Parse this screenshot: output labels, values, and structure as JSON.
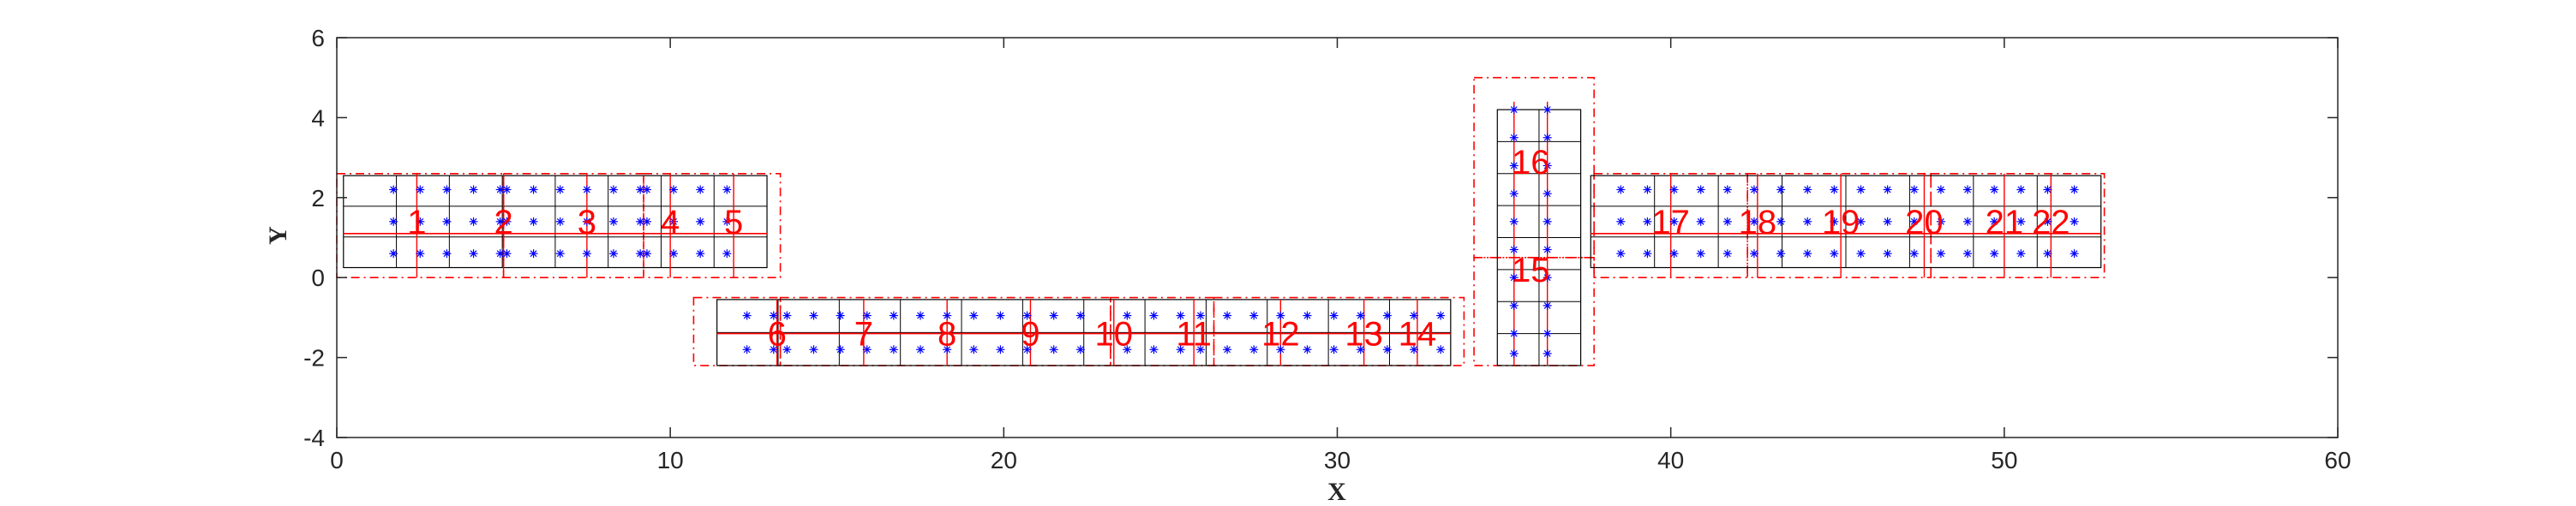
{
  "chart_data": {
    "type": "scatter",
    "title": "",
    "xlabel": "X",
    "ylabel": "Y",
    "xlim": [
      0,
      60
    ],
    "ylim": [
      -4,
      6
    ],
    "xticks": [
      0,
      10,
      20,
      30,
      40,
      50,
      60
    ],
    "yticks": [
      -4,
      -2,
      0,
      2,
      4,
      6
    ],
    "grid": false,
    "colors": {
      "grid_lines": "#000000",
      "dashed_boxes": "#ff0000",
      "points": "#0000ff",
      "labels": "#ff0000",
      "axes": "#262626"
    },
    "regions": [
      {
        "label": "1",
        "x": 2.4,
        "y": 1.4
      },
      {
        "label": "2",
        "x": 5.0,
        "y": 1.4
      },
      {
        "label": "3",
        "x": 7.5,
        "y": 1.4
      },
      {
        "label": "4",
        "x": 10.0,
        "y": 1.4
      },
      {
        "label": "5",
        "x": 11.9,
        "y": 1.4
      },
      {
        "label": "6",
        "x": 13.2,
        "y": -1.4
      },
      {
        "label": "7",
        "x": 15.8,
        "y": -1.4
      },
      {
        "label": "8",
        "x": 18.3,
        "y": -1.4
      },
      {
        "label": "9",
        "x": 20.8,
        "y": -1.4
      },
      {
        "label": "10",
        "x": 23.3,
        "y": -1.4
      },
      {
        "label": "11",
        "x": 25.7,
        "y": -1.4
      },
      {
        "label": "12",
        "x": 28.3,
        "y": -1.4
      },
      {
        "label": "13",
        "x": 30.8,
        "y": -1.4
      },
      {
        "label": "14",
        "x": 32.4,
        "y": -1.4
      },
      {
        "label": "15",
        "x": 35.8,
        "y": 0.2
      },
      {
        "label": "16",
        "x": 35.8,
        "y": 2.9
      },
      {
        "label": "17",
        "x": 40.0,
        "y": 1.4
      },
      {
        "label": "18",
        "x": 42.6,
        "y": 1.4
      },
      {
        "label": "19",
        "x": 45.1,
        "y": 1.4
      },
      {
        "label": "20",
        "x": 47.6,
        "y": 1.4
      },
      {
        "label": "21",
        "x": 50.0,
        "y": 1.4
      },
      {
        "label": "22",
        "x": 51.4,
        "y": 1.4
      }
    ],
    "grid_cells": [
      {
        "x0": 0.2,
        "x1": 12.9,
        "y0": 0.25,
        "y1": 2.55,
        "cols": 8,
        "rows": 3
      },
      {
        "x0": 11.4,
        "x1": 33.4,
        "y0": -2.2,
        "y1": -0.55,
        "cols": 12,
        "rows": 2
      },
      {
        "x0": 34.8,
        "x1": 37.3,
        "y0": -2.2,
        "y1": 4.2,
        "cols": 2,
        "rows": 8
      },
      {
        "x0": 37.6,
        "x1": 52.9,
        "y0": 0.25,
        "y1": 2.55,
        "cols": 8,
        "rows": 3
      }
    ],
    "dashed_boxes": [
      {
        "x0": 0.0,
        "x1": 5.0,
        "y0": 0.0,
        "y1": 2.6
      },
      {
        "x0": 5.0,
        "x1": 9.2,
        "y0": 0.0,
        "y1": 2.6
      },
      {
        "x0": 9.2,
        "x1": 13.3,
        "y0": 0.0,
        "y1": 2.6
      },
      {
        "x0": 10.7,
        "x1": 13.3,
        "y0": -2.2,
        "y1": -0.5
      },
      {
        "x0": 13.3,
        "x1": 23.2,
        "y0": -2.2,
        "y1": -0.5
      },
      {
        "x0": 23.2,
        "x1": 26.3,
        "y0": -2.2,
        "y1": -0.5
      },
      {
        "x0": 26.3,
        "x1": 33.8,
        "y0": -2.2,
        "y1": -0.5
      },
      {
        "x0": 34.1,
        "x1": 37.7,
        "y0": -2.2,
        "y1": 0.5
      },
      {
        "x0": 34.1,
        "x1": 37.7,
        "y0": 0.5,
        "y1": 5.0
      },
      {
        "x0": 37.7,
        "x1": 42.3,
        "y0": 0.0,
        "y1": 2.6
      },
      {
        "x0": 42.3,
        "x1": 47.8,
        "y0": 0.0,
        "y1": 2.6
      },
      {
        "x0": 47.8,
        "x1": 53.0,
        "y0": 0.0,
        "y1": 2.6
      }
    ],
    "point_blocks": [
      {
        "xs": [
          1.7,
          2.5,
          3.3,
          4.1,
          4.9,
          5.1,
          5.9,
          6.7,
          7.5,
          8.3,
          9.1,
          9.3,
          10.1,
          10.9,
          11.7
        ],
        "ys": [
          2.2,
          1.4,
          0.6
        ]
      },
      {
        "xs": [
          12.3,
          13.1,
          13.5,
          14.3,
          15.1,
          15.9,
          16.7,
          17.5,
          18.3,
          19.1,
          19.9,
          20.7,
          21.5,
          22.3,
          23.7,
          24.5,
          25.3,
          25.9,
          26.7,
          27.5,
          28.3,
          29.1,
          29.9,
          30.7,
          31.5,
          32.3,
          33.1
        ],
        "ys": [
          -0.95,
          -1.8
        ]
      },
      {
        "xs": [
          35.3,
          36.3
        ],
        "ys": [
          4.2,
          3.5,
          2.8,
          2.1,
          1.4,
          0.7,
          0.0,
          -0.7,
          -1.4,
          -1.9
        ]
      },
      {
        "xs": [
          38.5,
          39.3,
          40.1,
          40.9,
          41.7,
          42.5,
          43.3,
          44.1,
          44.9,
          45.7,
          46.5,
          47.3,
          48.1,
          48.9,
          49.7,
          50.5,
          51.3,
          52.1
        ],
        "ys": [
          2.2,
          1.4,
          0.6
        ]
      }
    ],
    "red_vertical_lines": [
      2.4,
      5.0,
      7.5,
      10.0,
      11.9,
      13.2,
      15.8,
      18.3,
      20.8,
      23.3,
      25.7,
      28.3,
      30.8,
      32.4,
      35.3,
      36.3,
      40.0,
      42.6,
      45.1,
      47.6,
      50.0,
      51.4
    ],
    "red_horizontal_lines": [
      {
        "x0": 0.2,
        "x1": 12.9,
        "y": 1.1
      },
      {
        "x0": 11.4,
        "x1": 33.4,
        "y": -1.4
      },
      {
        "x0": 37.6,
        "x1": 52.9,
        "y": 1.1
      }
    ]
  }
}
